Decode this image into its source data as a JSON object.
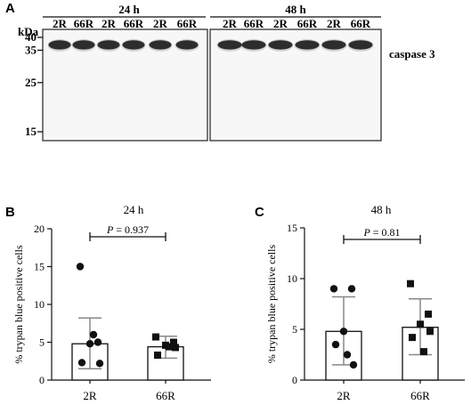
{
  "panel_letters": {
    "a": "A",
    "b": "B",
    "c": "C"
  },
  "blot": {
    "unit_label": "kDa",
    "time_labels": [
      "24 h",
      "48 h"
    ],
    "lane_labels": [
      "2R",
      "66R",
      "2R",
      "66R",
      "2R",
      "66R"
    ],
    "marker_labels": [
      "40",
      "35",
      "25",
      "15"
    ],
    "marker_kda": [
      40,
      35,
      25,
      15
    ],
    "band_label": "caspase 3",
    "band_kda": 37
  },
  "chart_data": [
    {
      "type": "bar",
      "title": "24 h",
      "ylabel": "% trypan blue positive cells",
      "categories": [
        "2R",
        "66R"
      ],
      "ylim": [
        0,
        20
      ],
      "yticks": [
        0,
        5,
        10,
        15,
        20
      ],
      "tick_labels": [
        "0",
        "5",
        "10",
        "15",
        "20"
      ],
      "bar_values": [
        4.8,
        4.4
      ],
      "error_low": [
        1.5,
        2.9
      ],
      "error_high": [
        8.2,
        5.8
      ],
      "points": [
        [
          15.0,
          5.0,
          4.8,
          2.3,
          2.2,
          6.0
        ],
        [
          5.7,
          5.0,
          4.6,
          3.3,
          4.3,
          4.4
        ]
      ],
      "markers": [
        "circle",
        "square"
      ],
      "annotation": {
        "text": "P = 0.937",
        "p_symbol": "P",
        "p_value": "= 0.937"
      }
    },
    {
      "type": "bar",
      "title": "48 h",
      "ylabel": "% trypan blue positive cells",
      "categories": [
        "2R",
        "66R"
      ],
      "ylim": [
        0,
        15
      ],
      "yticks": [
        0,
        5,
        10,
        15
      ],
      "tick_labels": [
        "0",
        "5",
        "10",
        "15"
      ],
      "bar_values": [
        4.8,
        5.2
      ],
      "error_low": [
        1.5,
        2.5
      ],
      "error_high": [
        8.2,
        8.0
      ],
      "points": [
        [
          9.0,
          9.0,
          4.8,
          3.5,
          1.5,
          2.5
        ],
        [
          9.5,
          6.5,
          5.5,
          4.2,
          4.8,
          2.8
        ]
      ],
      "markers": [
        "circle",
        "square"
      ],
      "annotation": {
        "text": "P = 0.81",
        "p_symbol": "P",
        "p_value": "= 0.81"
      }
    }
  ]
}
